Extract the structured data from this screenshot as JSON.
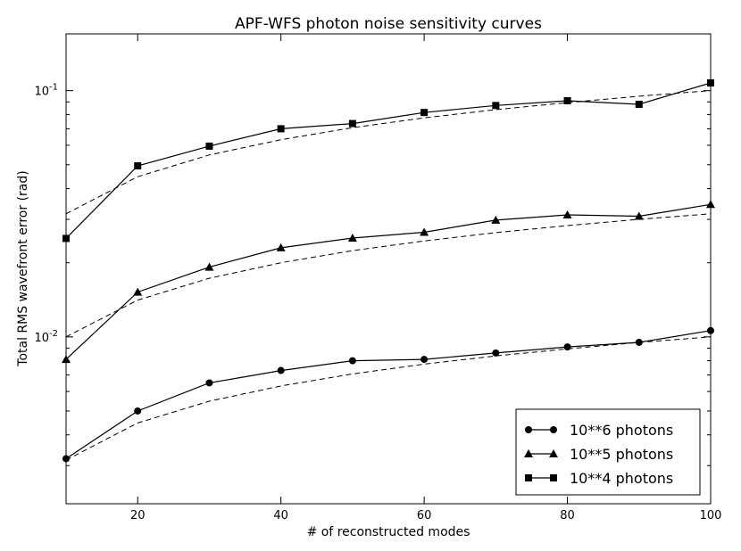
{
  "chart_data": {
    "type": "line",
    "title": "APF-WFS photon noise sensitivity curves",
    "xlabel": "# of reconstructed modes",
    "ylabel": "Total RMS wavefront error (rad)",
    "xscale": "linear",
    "yscale": "log",
    "xlim": [
      10,
      100
    ],
    "ylim": [
      0.0021,
      0.17
    ],
    "x_ticks": [
      20,
      40,
      60,
      80,
      100
    ],
    "x_tick_labels": [
      "20",
      "40",
      "60",
      "80",
      "100"
    ],
    "y_major_ticks": [
      0.01,
      0.1
    ],
    "y_tick_labels": [
      {
        "base": "10",
        "exp": "-2"
      },
      {
        "base": "10",
        "exp": "-1"
      }
    ],
    "y_minor_ticks": [
      0.003,
      0.004,
      0.005,
      0.006,
      0.007,
      0.008,
      0.009,
      0.02,
      0.03,
      0.04,
      0.05,
      0.06,
      0.07,
      0.08,
      0.09
    ],
    "x": [
      10,
      20,
      30,
      40,
      50,
      60,
      70,
      80,
      90,
      100
    ],
    "series": [
      {
        "name": "10**6 photons",
        "marker": "circle",
        "values": [
          0.0032,
          0.005,
          0.0065,
          0.0073,
          0.008,
          0.0081,
          0.0086,
          0.0091,
          0.0095,
          0.0106
        ]
      },
      {
        "name": "10**5 photons",
        "marker": "triangle",
        "values": [
          0.0081,
          0.0152,
          0.0192,
          0.023,
          0.0252,
          0.0266,
          0.0298,
          0.0313,
          0.0309,
          0.0345
        ]
      },
      {
        "name": "10**4 photons",
        "marker": "square",
        "values": [
          0.0251,
          0.0495,
          0.0595,
          0.07,
          0.0735,
          0.0815,
          0.087,
          0.091,
          0.088,
          0.1075
        ]
      }
    ],
    "reference_lines": [
      {
        "style": "dashed",
        "values": [
          0.00316,
          0.00447,
          0.00548,
          0.00632,
          0.00707,
          0.00775,
          0.00837,
          0.00894,
          0.00949,
          0.01
        ]
      },
      {
        "style": "dashed",
        "values": [
          0.01,
          0.0141,
          0.0173,
          0.02,
          0.0224,
          0.0245,
          0.0265,
          0.0283,
          0.03,
          0.0316
        ]
      },
      {
        "style": "dashed",
        "values": [
          0.0316,
          0.0447,
          0.0548,
          0.0632,
          0.0707,
          0.0775,
          0.0837,
          0.0894,
          0.0949,
          0.1
        ]
      }
    ],
    "legend_position": "lower-right"
  }
}
